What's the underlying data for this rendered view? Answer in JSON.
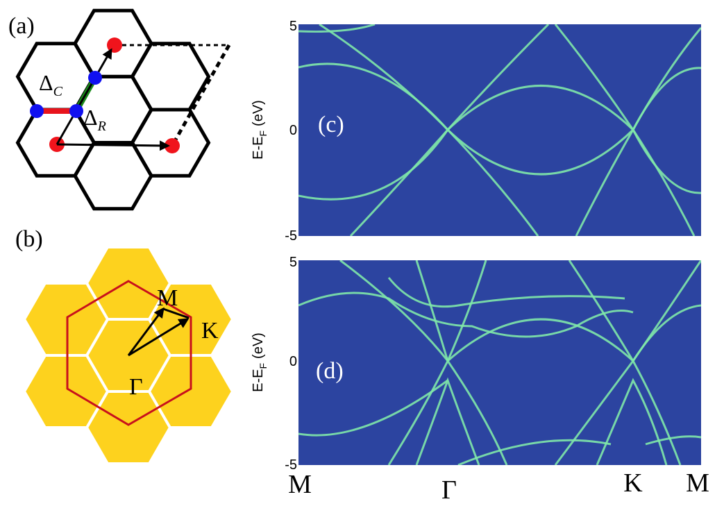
{
  "panel_a": {
    "label": "(a)",
    "delta_c": {
      "symbol": "Δ",
      "subscript": "C"
    },
    "delta_r": {
      "symbol": "Δ",
      "subscript": "R"
    }
  },
  "panel_b": {
    "label": "(b)",
    "points": [
      "M",
      "K",
      "Γ"
    ]
  },
  "panel_c": {
    "label": "(c)",
    "y_axis_label": {
      "text": "E-E",
      "subscript": "F",
      "unit": "(eV)"
    },
    "yticks": [
      "5",
      "0",
      "-5"
    ]
  },
  "panel_d": {
    "label": "(d)",
    "y_axis_label": {
      "text": "E-E",
      "subscript": "F",
      "unit": "(eV)"
    },
    "yticks": [
      "5",
      "0",
      "-5"
    ]
  },
  "x_axis": {
    "labels": [
      "M",
      "Γ",
      "K",
      "M"
    ]
  }
}
